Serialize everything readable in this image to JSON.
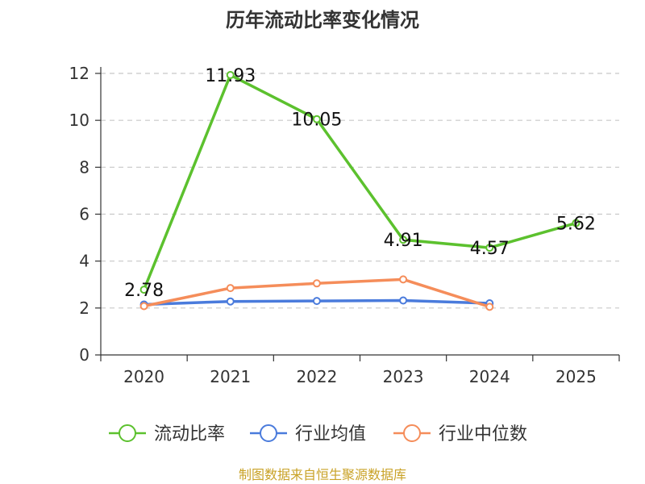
{
  "chart_data": {
    "type": "line",
    "title": "历年流动比率变化情况",
    "categories": [
      "2020",
      "2021",
      "2022",
      "2023",
      "2024",
      "2025"
    ],
    "ylim": [
      0,
      12
    ],
    "yticks": [
      0,
      2,
      4,
      6,
      8,
      10,
      12
    ],
    "grid": true,
    "legend_position": "bottom",
    "series": [
      {
        "name": "流动比率",
        "color": "#5cc12e",
        "values": [
          2.78,
          11.93,
          10.05,
          4.91,
          4.57,
          5.62
        ],
        "labels": [
          "2.78",
          "11.93",
          "10.05",
          "4.91",
          "4.57",
          "5.62"
        ]
      },
      {
        "name": "行业均值",
        "color": "#4a7bdc",
        "values": [
          2.15,
          2.28,
          2.3,
          2.32,
          2.2,
          null
        ]
      },
      {
        "name": "行业中位数",
        "color": "#f58d5a",
        "values": [
          2.08,
          2.85,
          3.05,
          3.22,
          2.05,
          null
        ]
      }
    ]
  },
  "source": "制图数据来自恒生聚源数据库"
}
